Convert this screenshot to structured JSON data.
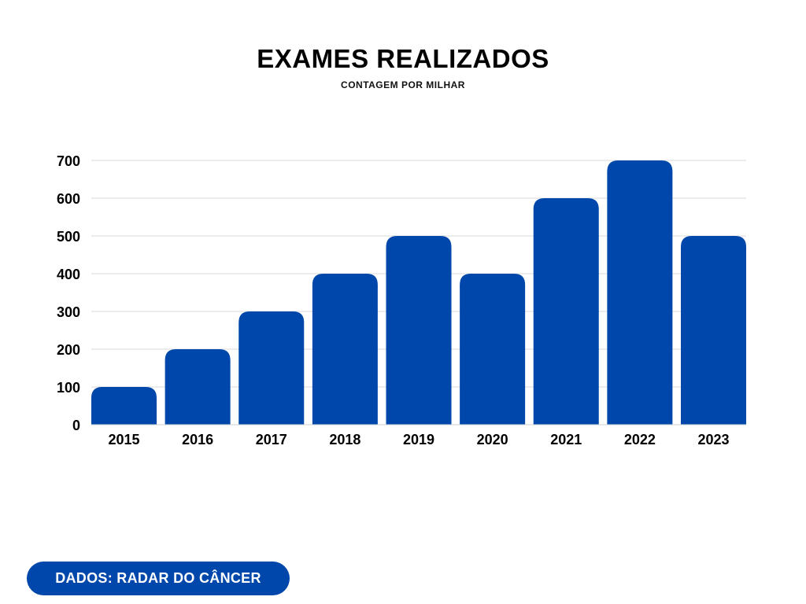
{
  "chart_data": {
    "type": "bar",
    "title": "EXAMES REALIZADOS",
    "subtitle": "CONTAGEM POR MILHAR",
    "categories": [
      "2015",
      "2016",
      "2017",
      "2018",
      "2019",
      "2020",
      "2021",
      "2022",
      "2023"
    ],
    "values": [
      100,
      200,
      300,
      400,
      500,
      400,
      600,
      700,
      500
    ],
    "xlabel": "",
    "ylabel": "",
    "ylim": [
      0,
      700
    ],
    "yticks": [
      0,
      100,
      200,
      300,
      400,
      500,
      600,
      700
    ],
    "grid": true,
    "legend": "none",
    "bar_color": "#0047ab",
    "grid_color": "#d9d9d9"
  },
  "source": {
    "label": "DADOS: RADAR DO CÂNCER",
    "color": "#0047ab"
  }
}
